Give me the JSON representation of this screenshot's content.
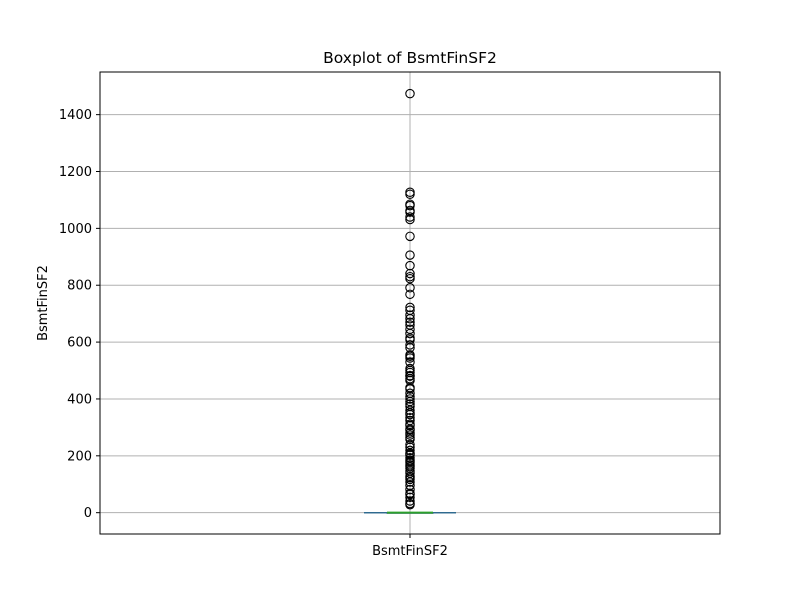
{
  "chart_data": {
    "type": "boxplot",
    "title": "Boxplot of BsmtFinSF2",
    "xlabel": "",
    "ylabel": "BsmtFinSF2",
    "categories": [
      "BsmtFinSF2"
    ],
    "ylim": [
      -75,
      1550
    ],
    "yticks": [
      0,
      200,
      400,
      600,
      800,
      1000,
      1200,
      1400
    ],
    "ytick_labels": [
      "0",
      "200",
      "400",
      "600",
      "800",
      "1000",
      "1200",
      "1400"
    ],
    "grid": true,
    "box": {
      "min": 0,
      "q1": 0,
      "median": 0,
      "q3": 0,
      "max": 0
    },
    "outliers": [
      1474,
      1127,
      1120,
      1085,
      1080,
      1063,
      1057,
      1040,
      1031,
      972,
      906,
      869,
      841,
      830,
      823,
      791,
      768,
      722,
      712,
      695,
      682,
      670,
      660,
      645,
      630,
      614,
      608,
      590,
      580,
      555,
      550,
      544,
      530,
      507,
      500,
      493,
      482,
      480,
      471,
      465,
      440,
      435,
      420,
      408,
      400,
      391,
      382,
      374,
      360,
      351,
      345,
      334,
      324,
      311,
      306,
      294,
      290,
      280,
      273,
      264,
      258,
      240,
      230,
      219,
      210,
      206,
      202,
      193,
      185,
      180,
      175,
      168,
      162,
      156,
      147,
      139,
      128,
      123,
      117,
      108,
      96,
      81,
      68,
      64,
      54,
      41,
      32,
      28
    ],
    "colors": {
      "median": "#2ca02c",
      "outlier_edge": "#000000",
      "grid": "#b0b0b0",
      "axes": "#000000"
    }
  }
}
